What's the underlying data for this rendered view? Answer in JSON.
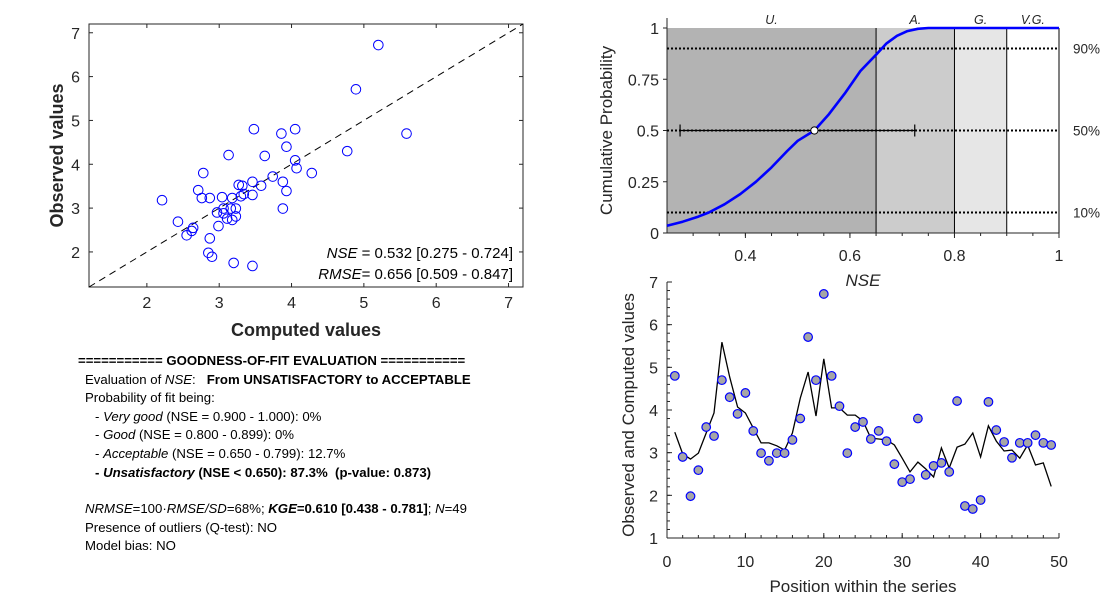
{
  "chart_data": [
    {
      "id": "scatter",
      "type": "scatter",
      "title": "",
      "xlabel": "Computed values",
      "ylabel": "Observed values",
      "xlim": [
        1.2,
        7.2
      ],
      "ylim": [
        1.2,
        7.2
      ],
      "xticks": [
        "2",
        "3",
        "4",
        "5",
        "6",
        "7"
      ],
      "yticks": [
        "2",
        "3",
        "4",
        "5",
        "6",
        "7"
      ],
      "reference_line": "1:1 dashed",
      "marker": "open circle",
      "marker_color": "#0000ff",
      "annotations": [
        {
          "label": "NSE",
          "text": "= 0.532 [0.275 - 0.724]"
        },
        {
          "label": "RMSE",
          "text": "= 0.656 [0.509 - 0.847]"
        }
      ]
    },
    {
      "id": "cdf",
      "type": "line",
      "title": "",
      "xlabel": "NSE",
      "ylabel": "Cumulative Probability",
      "xlim": [
        0.25,
        1
      ],
      "ylim": [
        0,
        1
      ],
      "xticks": [
        "0.4",
        "0.6",
        "0.8",
        "1"
      ],
      "yticks": [
        "0",
        "0.25",
        "0.5",
        "0.75",
        "1"
      ],
      "regions": [
        {
          "label": "U.",
          "from": 0.25,
          "to": 0.65,
          "color": "#b3b3b3"
        },
        {
          "label": "A.",
          "from": 0.65,
          "to": 0.8,
          "color": "#cccccc"
        },
        {
          "label": "G.",
          "from": 0.8,
          "to": 0.9,
          "color": "#e6e6e6"
        },
        {
          "label": "V.G.",
          "from": 0.9,
          "to": 1.0,
          "color": "#ffffff"
        }
      ],
      "percentile_lines": [
        {
          "y": 0.9,
          "label": "90%"
        },
        {
          "y": 0.5,
          "label": "50%"
        },
        {
          "y": 0.1,
          "label": "10%"
        }
      ],
      "median_point": {
        "x": 0.532,
        "y": 0.5
      },
      "interval": {
        "low": 0.275,
        "high": 0.724,
        "y": 0.5
      },
      "series": [
        {
          "name": "CDF",
          "color": "#0000ff",
          "x": [
            0.25,
            0.28,
            0.31,
            0.33,
            0.36,
            0.39,
            0.42,
            0.45,
            0.48,
            0.5,
            0.532,
            0.56,
            0.59,
            0.62,
            0.65,
            0.67,
            0.69,
            0.71,
            0.73,
            0.75,
            0.77,
            1.0
          ],
          "y": [
            0.035,
            0.055,
            0.08,
            0.1,
            0.14,
            0.19,
            0.25,
            0.32,
            0.4,
            0.45,
            0.5,
            0.58,
            0.68,
            0.79,
            0.87,
            0.925,
            0.962,
            0.985,
            0.996,
            1.0,
            1.0,
            1.0
          ]
        }
      ]
    },
    {
      "id": "series",
      "type": "line",
      "title": "",
      "xlabel": "Position within the series",
      "ylabel": "Observed and Computed values",
      "xlim": [
        0,
        50
      ],
      "ylim": [
        1,
        7
      ],
      "xticks": [
        "0",
        "10",
        "20",
        "30",
        "40",
        "50"
      ],
      "yticks": [
        "1",
        "2",
        "3",
        "4",
        "5",
        "6",
        "7"
      ],
      "x": [
        1,
        2,
        3,
        4,
        5,
        6,
        7,
        8,
        9,
        10,
        11,
        12,
        13,
        14,
        15,
        16,
        17,
        18,
        19,
        20,
        21,
        22,
        23,
        24,
        25,
        26,
        27,
        28,
        29,
        30,
        31,
        32,
        33,
        34,
        35,
        36,
        37,
        38,
        39,
        40,
        41,
        42,
        43,
        44,
        45,
        46,
        47,
        48,
        49
      ],
      "series": [
        {
          "name": "Observed",
          "style": "markers",
          "marker_face": "#a6a6a6",
          "marker_edge": "#0000ff",
          "values": [
            4.8,
            2.9,
            1.98,
            2.59,
            3.6,
            3.39,
            4.7,
            4.3,
            3.91,
            4.4,
            3.51,
            2.99,
            2.81,
            2.99,
            2.99,
            3.3,
            3.8,
            5.71,
            4.7,
            6.72,
            4.8,
            4.09,
            2.99,
            3.6,
            3.72,
            3.32,
            3.51,
            3.27,
            2.73,
            2.31,
            2.38,
            3.8,
            2.48,
            2.69,
            2.76,
            2.55,
            4.21,
            1.75,
            1.68,
            1.89,
            4.19,
            3.53,
            3.25,
            2.88,
            3.23,
            3.23,
            3.41,
            3.23,
            3.18
          ]
        },
        {
          "name": "Computed",
          "style": "line",
          "color": "#000000",
          "values": [
            3.48,
            2.97,
            2.85,
            2.99,
            3.46,
            3.93,
            5.59,
            4.77,
            4.07,
            3.93,
            3.58,
            3.23,
            3.23,
            3.16,
            3.06,
            3.46,
            4.28,
            4.89,
            3.86,
            5.2,
            4.05,
            4.05,
            3.88,
            3.88,
            3.74,
            3.34,
            3.32,
            3.3,
            3.18,
            2.87,
            2.55,
            2.78,
            2.62,
            2.43,
            3.11,
            2.64,
            3.13,
            3.2,
            3.46,
            2.9,
            3.63,
            3.27,
            3.04,
            3.06,
            2.87,
            3.18,
            2.71,
            2.76,
            2.21
          ]
        }
      ]
    }
  ],
  "report": {
    "header": "=========== GOODNESS-OF-FIT EVALUATION ===========",
    "eval_prefix": "Evaluation of ",
    "eval_metric": "NSE",
    "eval_colon": ":   ",
    "eval_result": "From UNSATISFACTORY to ACCEPTABLE",
    "prob_title": "Probability of fit being:",
    "classes": [
      {
        "dash": "- ",
        "name": "Very good",
        "range": " (NSE = 0.900 - 1.000): 0%"
      },
      {
        "dash": "- ",
        "name": "Good",
        "range": " (NSE = 0.800 - 0.899): 0%"
      },
      {
        "dash": "- ",
        "name": "Acceptable",
        "range": " (NSE = 0.650 - 0.799): 12.7%"
      },
      {
        "dash": "- ",
        "name": "Unsatisfactory",
        "range": " (NSE < 0.650): 87.3%  (p-value: 0.873)"
      }
    ],
    "nrmse_label": "NRMSE",
    "nrmse_eq": "=100·",
    "nrmse_rmse": "RMSE",
    "nrmse_slash": "/",
    "nrmse_sd": "SD",
    "nrmse_val": "=68%; ",
    "kge_label": "KGE",
    "kge_val": "=0.610 [0.438 - 0.781]",
    "sep": "; ",
    "n_label": "N",
    "n_val": "=49",
    "outliers": "Presence of outliers (Q-test): NO",
    "bias": "Model bias: NO"
  }
}
